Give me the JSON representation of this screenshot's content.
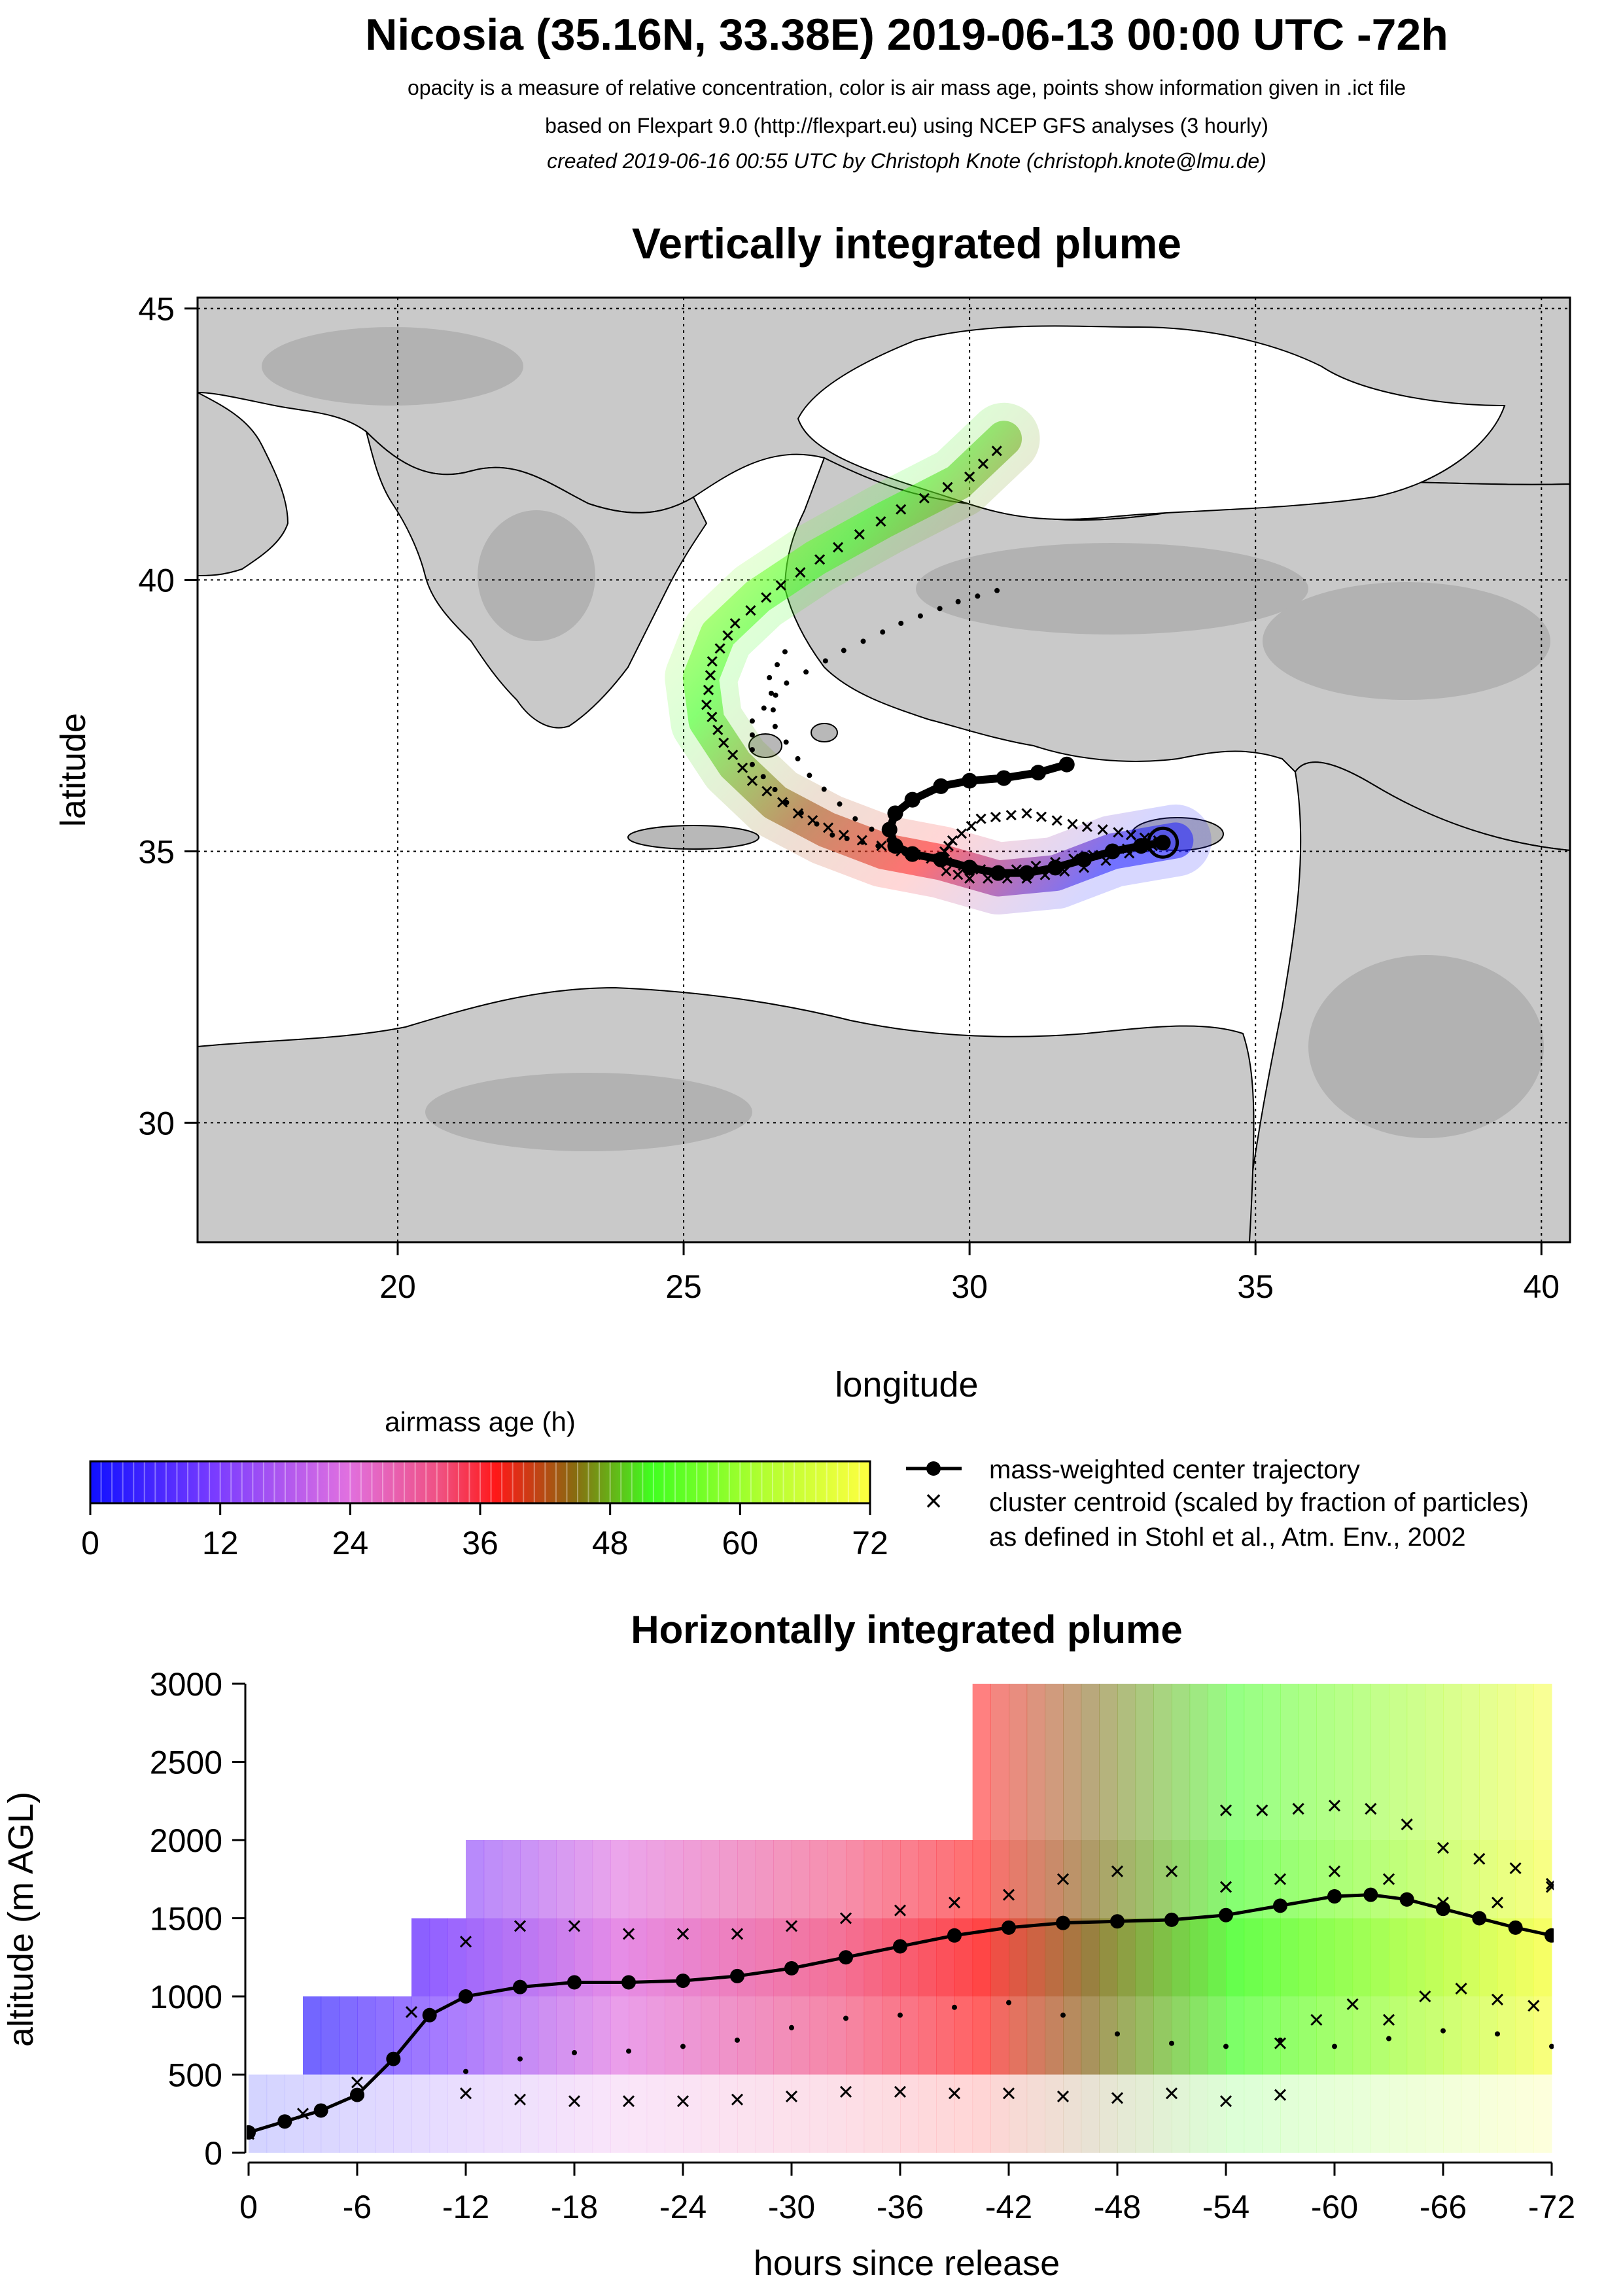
{
  "header": {
    "title": "Nicosia (35.16N, 33.38E) 2019-06-13 00:00 UTC -72h",
    "line1": "opacity is a measure of relative concentration, color is air mass age, points show information given in .ict file",
    "line2": "based on Flexpart 9.0 (http://flexpart.eu) using NCEP GFS analyses (3 hourly)",
    "line3": "created 2019-06-16 00:55 UTC by Christoph Knote (christoph.knote@lmu.de)"
  },
  "colors": {
    "young": "#1010ff",
    "mid": "#ff2020",
    "old": "#ffff20",
    "center": "#000000"
  },
  "legend": {
    "colorbar_title": "airmass age (h)",
    "colorbar_ticks": [
      "0",
      "12",
      "24",
      "36",
      "48",
      "60",
      "72"
    ],
    "center_label": "mass-weighted center trajectory",
    "cluster_label_1": "cluster centroid (scaled by fraction of particles)",
    "cluster_label_2": "as defined in Stohl et al., Atm. Env., 2002"
  },
  "chart_data": [
    {
      "type": "map",
      "title": "Vertically integrated plume",
      "xlabel": "longitude",
      "ylabel": "latitude",
      "xlim": [
        16.5,
        40.5
      ],
      "ylim": [
        27.8,
        45.2
      ],
      "xticks": [
        20,
        25,
        30,
        35,
        40
      ],
      "yticks": [
        30,
        35,
        40,
        45
      ],
      "xtick_labels": [
        "20",
        "25",
        "30",
        "35",
        "40"
      ],
      "ytick_labels": [
        "30",
        "35",
        "40",
        "45"
      ],
      "grid": true,
      "release_site": {
        "lon": 33.38,
        "lat": 35.16
      },
      "center_trajectory": [
        [
          33.38,
          35.16
        ],
        [
          33.0,
          35.1
        ],
        [
          32.5,
          35.0
        ],
        [
          32.0,
          34.85
        ],
        [
          31.5,
          34.7
        ],
        [
          31.0,
          34.6
        ],
        [
          30.5,
          34.6
        ],
        [
          30.0,
          34.7
        ],
        [
          29.5,
          34.85
        ],
        [
          29.0,
          34.95
        ],
        [
          28.7,
          35.1
        ],
        [
          28.6,
          35.4
        ],
        [
          28.7,
          35.7
        ],
        [
          29.0,
          35.95
        ],
        [
          29.5,
          36.2
        ],
        [
          30.0,
          36.3
        ],
        [
          30.6,
          36.35
        ],
        [
          31.2,
          36.45
        ],
        [
          31.7,
          36.6
        ]
      ],
      "cluster_tracks": [
        [
          [
            33.3,
            35.15
          ],
          [
            32.5,
            35.0
          ],
          [
            31.5,
            34.8
          ],
          [
            30.5,
            34.6
          ],
          [
            29.6,
            34.8
          ],
          [
            28.8,
            35.0
          ],
          [
            27.8,
            35.3
          ],
          [
            27.0,
            35.7
          ],
          [
            26.2,
            36.3
          ],
          [
            25.7,
            37.0
          ],
          [
            25.4,
            37.7
          ],
          [
            25.5,
            38.5
          ],
          [
            25.9,
            39.2
          ],
          [
            26.7,
            39.9
          ],
          [
            27.7,
            40.6
          ],
          [
            28.8,
            41.3
          ],
          [
            30.0,
            41.9
          ],
          [
            30.7,
            42.6
          ]
        ],
        [
          [
            33.3,
            35.2
          ],
          [
            32.6,
            35.35
          ],
          [
            31.8,
            35.5
          ],
          [
            31.0,
            35.7
          ],
          [
            30.2,
            35.6
          ],
          [
            29.7,
            35.2
          ],
          [
            29.5,
            34.9
          ]
        ],
        [
          [
            33.2,
            35.1
          ],
          [
            32.0,
            34.7
          ],
          [
            31.0,
            34.5
          ],
          [
            30.0,
            34.5
          ],
          [
            29.4,
            34.7
          ]
        ]
      ],
      "dot_tracks": [
        [
          [
            29.1,
            34.9
          ],
          [
            28.4,
            35.1
          ],
          [
            27.6,
            35.3
          ],
          [
            26.8,
            35.9
          ],
          [
            26.2,
            36.6
          ],
          [
            26.2,
            37.4
          ],
          [
            26.8,
            38.1
          ],
          [
            27.8,
            38.7
          ],
          [
            28.8,
            39.2
          ],
          [
            29.8,
            39.6
          ],
          [
            30.8,
            39.9
          ]
        ],
        [
          [
            28.9,
            35.0
          ],
          [
            28.0,
            35.6
          ],
          [
            27.2,
            36.4
          ],
          [
            26.6,
            37.3
          ],
          [
            26.5,
            38.2
          ],
          [
            26.9,
            38.9
          ]
        ]
      ],
      "plume_path": [
        [
          33.6,
          35.2
        ],
        [
          32.5,
          35.0
        ],
        [
          31.5,
          34.6
        ],
        [
          30.5,
          34.5
        ],
        [
          29.5,
          34.8
        ],
        [
          28.5,
          35.0
        ],
        [
          27.5,
          35.4
        ],
        [
          26.6,
          35.9
        ],
        [
          25.9,
          36.6
        ],
        [
          25.4,
          37.4
        ],
        [
          25.3,
          38.2
        ],
        [
          25.6,
          39.0
        ],
        [
          26.3,
          39.7
        ],
        [
          27.3,
          40.4
        ],
        [
          28.5,
          41.1
        ],
        [
          29.8,
          41.8
        ],
        [
          30.6,
          42.6
        ]
      ]
    },
    {
      "type": "area",
      "title": "Horizontally integrated plume",
      "xlabel": "hours since release",
      "ylabel": "altitude (m AGL)",
      "xlim": [
        0,
        -72
      ],
      "ylim": [
        0,
        3000
      ],
      "xticks": [
        0,
        -6,
        -12,
        -18,
        -24,
        -30,
        -36,
        -42,
        -48,
        -54,
        -60,
        -66,
        -72
      ],
      "xtick_labels": [
        "0",
        "-6",
        "-12",
        "-18",
        "-24",
        "-30",
        "-36",
        "-42",
        "-48",
        "-54",
        "-60",
        "-66",
        "-72"
      ],
      "yticks": [
        0,
        500,
        1000,
        1500,
        2000,
        2500,
        3000
      ],
      "ytick_labels": [
        "0",
        "500",
        "1000",
        "1500",
        "2000",
        "2500",
        "3000"
      ],
      "center_altitude": {
        "x": [
          0,
          -2,
          -4,
          -6,
          -8,
          -10,
          -12,
          -15,
          -18,
          -21,
          -24,
          -27,
          -30,
          -33,
          -36,
          -39,
          -42,
          -45,
          -48,
          -51,
          -54,
          -57,
          -60,
          -62,
          -64,
          -66,
          -68,
          -70,
          -72
        ],
        "y": [
          130,
          200,
          270,
          370,
          600,
          880,
          1000,
          1060,
          1090,
          1090,
          1100,
          1130,
          1180,
          1250,
          1320,
          1390,
          1440,
          1470,
          1480,
          1490,
          1520,
          1580,
          1640,
          1650,
          1620,
          1560,
          1500,
          1440,
          1390
        ]
      },
      "cluster_altitude": [
        {
          "x": [
            0,
            -3,
            -6,
            -9,
            -12,
            -15,
            -18,
            -21,
            -24,
            -27,
            -30,
            -33,
            -36,
            -39,
            -42,
            -45,
            -48,
            -51,
            -54,
            -57,
            -60,
            -63,
            -66,
            -69,
            -72
          ],
          "y": [
            120,
            250,
            450,
            900,
            1350,
            1450,
            1450,
            1400,
            1400,
            1400,
            1450,
            1500,
            1550,
            1600,
            1650,
            1750,
            1800,
            1800,
            1700,
            1750,
            1800,
            1750,
            1600,
            1600,
            1700
          ]
        },
        {
          "x": [
            -12,
            -15,
            -18,
            -21,
            -24,
            -27,
            -30,
            -33,
            -36,
            -39,
            -42,
            -45,
            -48,
            -51,
            -54,
            -57
          ],
          "y": [
            380,
            340,
            330,
            330,
            330,
            340,
            360,
            390,
            390,
            380,
            380,
            360,
            350,
            380,
            330,
            370
          ]
        },
        {
          "x": [
            -54,
            -56,
            -58,
            -60,
            -62,
            -64,
            -66,
            -68,
            -70,
            -72
          ],
          "y": [
            2190,
            2190,
            2200,
            2220,
            2200,
            2100,
            1950,
            1880,
            1820,
            1720
          ]
        },
        {
          "x": [
            -57,
            -59,
            -61,
            -63,
            -65,
            -67,
            -69,
            -71
          ],
          "y": [
            700,
            850,
            950,
            850,
            1000,
            1050,
            980,
            940
          ]
        }
      ],
      "dot_altitude": [
        {
          "x": [
            -12,
            -15,
            -18,
            -21,
            -24,
            -27,
            -30,
            -33,
            -36,
            -39,
            -42,
            -45,
            -48,
            -51,
            -54,
            -57,
            -60,
            -63,
            -66,
            -69,
            -72
          ],
          "y": [
            520,
            600,
            640,
            650,
            680,
            720,
            800,
            860,
            880,
            930,
            960,
            880,
            760,
            700,
            680,
            720,
            680,
            730,
            780,
            760,
            680
          ]
        }
      ],
      "plume_bands": [
        {
          "from": 0,
          "to": -3,
          "ymin": 0,
          "ymax": 500
        },
        {
          "from": -3,
          "to": -9,
          "ymin": 0,
          "ymax": 1000
        },
        {
          "from": -9,
          "to": -12,
          "ymin": 0,
          "ymax": 1500
        },
        {
          "from": -12,
          "to": -40,
          "ymin": 0,
          "ymax": 2000
        },
        {
          "from": -40,
          "to": -72,
          "ymin": 0,
          "ymax": 3000
        }
      ]
    }
  ]
}
